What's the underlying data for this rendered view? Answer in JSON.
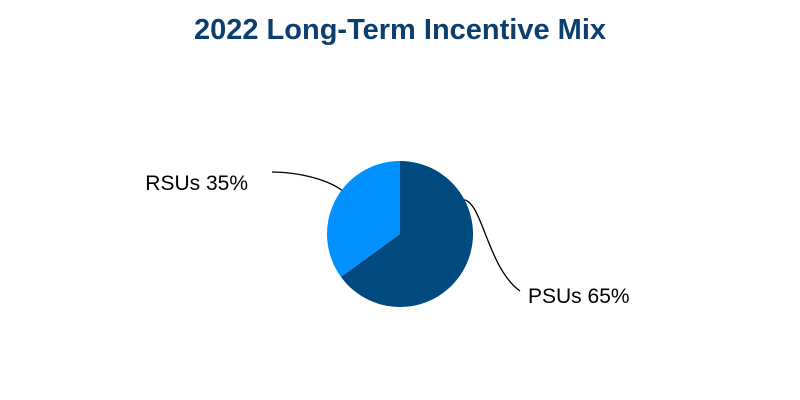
{
  "chart_data": {
    "type": "pie",
    "title": "2022 Long-Term Incentive Mix",
    "slices": [
      {
        "label": "PSUs 65%",
        "name": "PSUs",
        "value": 65,
        "color": "#004a80"
      },
      {
        "label": "RSUs 35%",
        "name": "RSUs",
        "value": 35,
        "color": "#0091ff"
      }
    ],
    "start_angle_deg": 0,
    "direction": "clockwise",
    "legend": "none"
  }
}
